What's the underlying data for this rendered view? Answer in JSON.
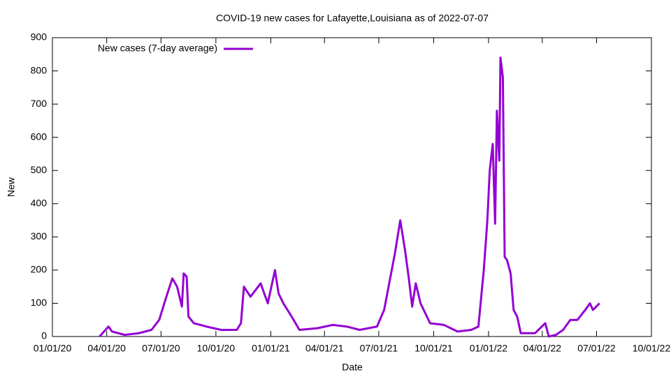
{
  "chart_data": {
    "type": "line",
    "title": "COVID-19 new cases for Lafayette,Louisiana as of 2022-07-07",
    "xlabel": "Date",
    "ylabel": "New",
    "legend": "top-left",
    "x": [
      "2020-03-20",
      "2020-04-04",
      "2020-04-10",
      "2020-05-01",
      "2020-05-25",
      "2020-06-15",
      "2020-06-28",
      "2020-07-10",
      "2020-07-20",
      "2020-07-28",
      "2020-08-05",
      "2020-08-08",
      "2020-08-13",
      "2020-08-16",
      "2020-08-25",
      "2020-09-15",
      "2020-10-10",
      "2020-11-05",
      "2020-11-12",
      "2020-11-17",
      "2020-11-28",
      "2020-12-15",
      "2020-12-27",
      "2021-01-08",
      "2021-01-14",
      "2021-01-22",
      "2021-02-05",
      "2021-02-18",
      "2021-03-20",
      "2021-04-15",
      "2021-05-08",
      "2021-05-30",
      "2021-06-28",
      "2021-07-10",
      "2021-07-28",
      "2021-08-06",
      "2021-08-14",
      "2021-08-20",
      "2021-08-26",
      "2021-09-01",
      "2021-09-09",
      "2021-09-25",
      "2021-10-18",
      "2021-11-10",
      "2021-12-03",
      "2021-12-15",
      "2021-12-24",
      "2021-12-30",
      "2022-01-03",
      "2022-01-08",
      "2022-01-12",
      "2022-01-15",
      "2022-01-19",
      "2022-01-21",
      "2022-01-25",
      "2022-01-28",
      "2022-02-01",
      "2022-02-07",
      "2022-02-12",
      "2022-02-18",
      "2022-02-24",
      "2022-03-20",
      "2022-04-06",
      "2022-04-12",
      "2022-04-24",
      "2022-05-06",
      "2022-05-18",
      "2022-05-30",
      "2022-06-12",
      "2022-06-20",
      "2022-06-25",
      "2022-07-06"
    ],
    "series": [
      {
        "name": "New cases (7-day average)",
        "color": "#9400d3",
        "values": [
          0,
          30,
          15,
          5,
          10,
          20,
          50,
          120,
          175,
          150,
          90,
          190,
          180,
          60,
          40,
          30,
          20,
          20,
          40,
          150,
          120,
          160,
          100,
          200,
          130,
          100,
          60,
          20,
          25,
          35,
          30,
          20,
          30,
          80,
          250,
          350,
          260,
          180,
          90,
          160,
          100,
          40,
          35,
          15,
          20,
          30,
          200,
          350,
          500,
          580,
          340,
          680,
          530,
          840,
          780,
          240,
          230,
          190,
          80,
          60,
          10,
          10,
          40,
          0,
          5,
          20,
          50,
          50,
          80,
          100,
          80,
          100
        ]
      }
    ],
    "xlim": [
      "2020-01-01",
      "2022-10-01"
    ],
    "xticks": [
      {
        "value": "2020-01-01",
        "label": "01/01/20"
      },
      {
        "value": "2020-04-01",
        "label": "04/01/20"
      },
      {
        "value": "2020-07-01",
        "label": "07/01/20"
      },
      {
        "value": "2020-10-01",
        "label": "10/01/20"
      },
      {
        "value": "2021-01-01",
        "label": "01/01/21"
      },
      {
        "value": "2021-04-01",
        "label": "04/01/21"
      },
      {
        "value": "2021-07-01",
        "label": "07/01/21"
      },
      {
        "value": "2021-10-01",
        "label": "10/01/21"
      },
      {
        "value": "2022-01-01",
        "label": "01/01/22"
      },
      {
        "value": "2022-04-01",
        "label": "04/01/22"
      },
      {
        "value": "2022-07-01",
        "label": "07/01/22"
      },
      {
        "value": "2022-10-01",
        "label": "10/01/22"
      }
    ],
    "ylim": [
      0,
      900
    ],
    "yticks": [
      0,
      100,
      200,
      300,
      400,
      500,
      600,
      700,
      800,
      900
    ]
  }
}
